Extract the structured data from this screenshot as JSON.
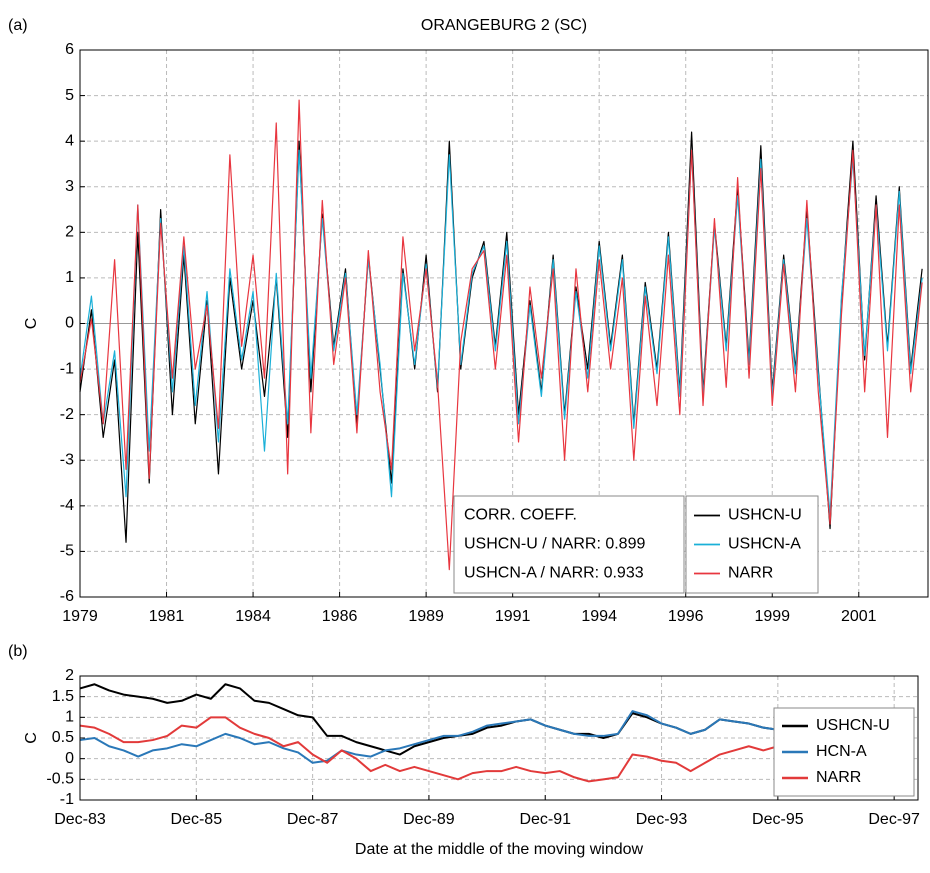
{
  "chart_data": [
    {
      "type": "line",
      "panel_label": "(a)",
      "title": "ORANGEBURG 2 (SC)",
      "ylabel": "C",
      "x": [
        1979,
        1979.33,
        1979.67,
        1980,
        1980.33,
        1980.67,
        1981,
        1981.33,
        1981.67,
        1982,
        1982.33,
        1982.67,
        1983,
        1983.33,
        1983.67,
        1984,
        1984.33,
        1984.67,
        1985,
        1985.33,
        1985.67,
        1986,
        1986.33,
        1986.67,
        1987,
        1987.33,
        1987.67,
        1988,
        1988.33,
        1988.67,
        1989,
        1989.33,
        1989.67,
        1990,
        1990.33,
        1990.67,
        1991,
        1991.33,
        1991.67,
        1992,
        1992.33,
        1992.67,
        1993,
        1993.33,
        1993.67,
        1994,
        1994.33,
        1994.67,
        1995,
        1995.33,
        1995.67,
        1996,
        1996.33,
        1996.67,
        1997,
        1997.33,
        1997.67,
        1998,
        1998.33,
        1998.67,
        1999,
        1999.33,
        1999.67,
        2000,
        2000.33,
        2000.67,
        2001,
        2001.33,
        2001.67,
        2002,
        2002.33,
        2002.67,
        2003,
        2003.33
      ],
      "series": [
        {
          "name": "USHCN-U",
          "color": "#000000",
          "values": [
            -1.5,
            0.3,
            -2.5,
            -0.8,
            -4.8,
            2.0,
            -3.5,
            2.5,
            -2.0,
            1.5,
            -2.2,
            0.5,
            -3.3,
            1.0,
            -1.0,
            0.5,
            -1.6,
            1.0,
            -2.5,
            4.0,
            -1.5,
            2.4,
            -0.5,
            1.2,
            -2.2,
            1.5,
            -1.0,
            -3.5,
            1.2,
            -1.0,
            1.5,
            -1.5,
            4.0,
            -1.0,
            1.0,
            1.8,
            -0.5,
            2.0,
            -2.0,
            0.5,
            -1.5,
            1.5,
            -2.0,
            0.8,
            -1.0,
            1.8,
            -0.5,
            1.5,
            -2.2,
            0.9,
            -1.0,
            2.0,
            -1.5,
            4.2,
            -1.5,
            2.2,
            -0.5,
            3.0,
            -0.8,
            3.9,
            -1.5,
            1.5,
            -1.0,
            2.5,
            -1.0,
            -4.5,
            0.5,
            4.0,
            -0.8,
            2.8,
            -0.5,
            3.0,
            -1.0,
            1.2
          ]
        },
        {
          "name": "USHCN-A",
          "color": "#1ab0d8",
          "values": [
            -1.2,
            0.6,
            -2.2,
            -0.6,
            -3.8,
            2.6,
            -2.8,
            2.3,
            -1.5,
            1.7,
            -1.8,
            0.7,
            -2.6,
            1.2,
            -0.8,
            0.7,
            -2.8,
            1.1,
            -2.2,
            3.8,
            -1.2,
            2.3,
            -0.6,
            1.1,
            -2.0,
            1.4,
            -0.9,
            -3.8,
            1.1,
            -0.9,
            1.3,
            -1.4,
            3.7,
            -0.9,
            1.1,
            1.7,
            -0.6,
            1.8,
            -2.2,
            0.4,
            -1.6,
            1.4,
            -2.1,
            0.7,
            -1.2,
            1.7,
            -0.6,
            1.4,
            -2.3,
            0.8,
            -1.1,
            1.9,
            -1.6,
            3.8,
            -1.6,
            2.1,
            -0.6,
            2.8,
            -0.9,
            3.6,
            -1.6,
            1.4,
            -1.1,
            2.3,
            -1.1,
            -4.2,
            0.6,
            3.6,
            -0.7,
            2.6,
            -0.6,
            2.9,
            -1.1,
            1.0
          ]
        },
        {
          "name": "NARR",
          "color": "#e8363f",
          "values": [
            -1.3,
            0.1,
            -2.2,
            1.4,
            -3.2,
            2.6,
            -3.4,
            2.2,
            -1.2,
            1.9,
            -1.0,
            0.4,
            -2.3,
            3.7,
            -0.5,
            1.5,
            -1.2,
            4.4,
            -3.3,
            4.9,
            -2.4,
            2.7,
            -0.9,
            1.0,
            -2.4,
            1.6,
            -1.5,
            -3.2,
            1.9,
            -0.6,
            1.2,
            -1.3,
            -5.4,
            -0.4,
            1.2,
            1.6,
            -1.0,
            1.5,
            -2.6,
            0.8,
            -1.2,
            1.2,
            -3.0,
            1.2,
            -1.5,
            1.4,
            -1.0,
            1.0,
            -3.0,
            0.6,
            -1.8,
            1.5,
            -2.0,
            3.8,
            -1.8,
            2.3,
            -1.4,
            3.2,
            -1.2,
            3.4,
            -1.8,
            1.3,
            -1.5,
            2.7,
            -1.5,
            -4.4,
            0.2,
            3.8,
            -1.5,
            2.6,
            -2.5,
            2.6,
            -1.5,
            0.9
          ]
        }
      ],
      "xlim": [
        1979,
        2003.5
      ],
      "xticks": [
        1979,
        {
          "value": 1981.5,
          "label": "1981"
        },
        1984,
        {
          "value": 1986.5,
          "label": "1986"
        },
        1989,
        {
          "value": 1991.5,
          "label": "1991"
        },
        1994,
        {
          "value": 1996.5,
          "label": "1996"
        },
        1999,
        {
          "value": 2001.5,
          "label": "2001"
        }
      ],
      "ylim": [
        -6,
        6
      ],
      "yticks": [
        -6,
        -5,
        -4,
        -3,
        -2,
        -1,
        0,
        1,
        2,
        3,
        4,
        5,
        6
      ],
      "grid": true,
      "legend": "lower right",
      "annotations": [
        "CORR. COEFF.",
        "USHCN-U / NARR: 0.899",
        "USHCN-A / NARR: 0.933"
      ]
    },
    {
      "type": "line",
      "panel_label": "(b)",
      "ylabel": "C",
      "xlabel": "Date at the middle of the moving window",
      "x": [
        1983.92,
        1984.17,
        1984.42,
        1984.67,
        1984.92,
        1985.17,
        1985.42,
        1985.67,
        1985.92,
        1986.17,
        1986.42,
        1986.67,
        1986.92,
        1987.17,
        1987.42,
        1987.67,
        1987.92,
        1988.17,
        1988.42,
        1988.67,
        1988.92,
        1989.17,
        1989.42,
        1989.67,
        1989.92,
        1990.17,
        1990.42,
        1990.67,
        1990.92,
        1991.17,
        1991.42,
        1991.67,
        1991.92,
        1992.17,
        1992.42,
        1992.67,
        1992.92,
        1993.17,
        1993.42,
        1993.67,
        1993.92,
        1994.17,
        1994.42,
        1994.67,
        1994.92,
        1995.17,
        1995.42,
        1995.67,
        1995.92,
        1996.17,
        1996.42,
        1996.67,
        1996.92,
        1997.17,
        1997.42,
        1997.67,
        1997.92,
        1998.17
      ],
      "series": [
        {
          "name": "USHCN-U",
          "color": "#000000",
          "values": [
            1.7,
            1.8,
            1.65,
            1.55,
            1.5,
            1.45,
            1.35,
            1.4,
            1.55,
            1.45,
            1.8,
            1.7,
            1.4,
            1.35,
            1.2,
            1.05,
            1.0,
            0.55,
            0.55,
            0.4,
            0.3,
            0.2,
            0.1,
            0.3,
            0.4,
            0.5,
            0.55,
            0.6,
            0.75,
            0.8,
            0.9,
            0.95,
            0.8,
            0.7,
            0.6,
            0.6,
            0.5,
            0.6,
            1.1,
            1.0,
            0.85,
            0.75,
            0.6,
            0.7,
            0.95,
            0.9,
            0.85,
            0.75,
            0.7,
            0.6,
            0.75,
            1.05,
            1.1,
            0.9,
            0.8,
            0.6,
            0.6,
            0.65
          ]
        },
        {
          "name": "HCN-A",
          "color": "#2a78b8",
          "values": [
            0.45,
            0.5,
            0.3,
            0.2,
            0.05,
            0.2,
            0.25,
            0.35,
            0.3,
            0.45,
            0.6,
            0.5,
            0.35,
            0.4,
            0.25,
            0.15,
            -0.1,
            -0.05,
            0.2,
            0.1,
            0.05,
            0.2,
            0.25,
            0.35,
            0.45,
            0.55,
            0.55,
            0.65,
            0.8,
            0.85,
            0.9,
            0.95,
            0.8,
            0.7,
            0.6,
            0.55,
            0.55,
            0.6,
            1.15,
            1.05,
            0.85,
            0.75,
            0.6,
            0.7,
            0.95,
            0.9,
            0.85,
            0.75,
            0.7,
            0.6,
            0.75,
            1.0,
            1.05,
            0.85,
            0.75,
            0.55,
            0.55,
            0.6
          ]
        },
        {
          "name": "NARR",
          "color": "#e23a3a",
          "values": [
            0.8,
            0.75,
            0.6,
            0.4,
            0.4,
            0.45,
            0.55,
            0.8,
            0.75,
            1.0,
            1.0,
            0.75,
            0.6,
            0.5,
            0.3,
            0.4,
            0.1,
            -0.1,
            0.2,
            0.0,
            -0.3,
            -0.15,
            -0.3,
            -0.2,
            -0.3,
            -0.4,
            -0.5,
            -0.35,
            -0.3,
            -0.3,
            -0.2,
            -0.3,
            -0.35,
            -0.3,
            -0.45,
            -0.55,
            -0.5,
            -0.45,
            0.1,
            0.05,
            -0.05,
            -0.1,
            -0.3,
            -0.1,
            0.1,
            0.2,
            0.3,
            0.2,
            0.3,
            0.6,
            0.8,
            0.85,
            0.8,
            0.75,
            0.6,
            0.5,
            0.5,
            0.55
          ]
        }
      ],
      "xlim": [
        1983.92,
        1998.33
      ],
      "xticks": [
        {
          "value": 1983.92,
          "label": "Dec-83"
        },
        {
          "value": 1985.92,
          "label": "Dec-85"
        },
        {
          "value": 1987.92,
          "label": "Dec-87"
        },
        {
          "value": 1989.92,
          "label": "Dec-89"
        },
        {
          "value": 1991.92,
          "label": "Dec-91"
        },
        {
          "value": 1993.92,
          "label": "Dec-93"
        },
        {
          "value": 1995.92,
          "label": "Dec-95"
        },
        {
          "value": 1997.92,
          "label": "Dec-97"
        }
      ],
      "ylim": [
        -1,
        2
      ],
      "yticks": [
        -1,
        -0.5,
        0,
        0.5,
        1,
        1.5,
        2
      ],
      "grid": true,
      "legend": "lower right"
    }
  ]
}
